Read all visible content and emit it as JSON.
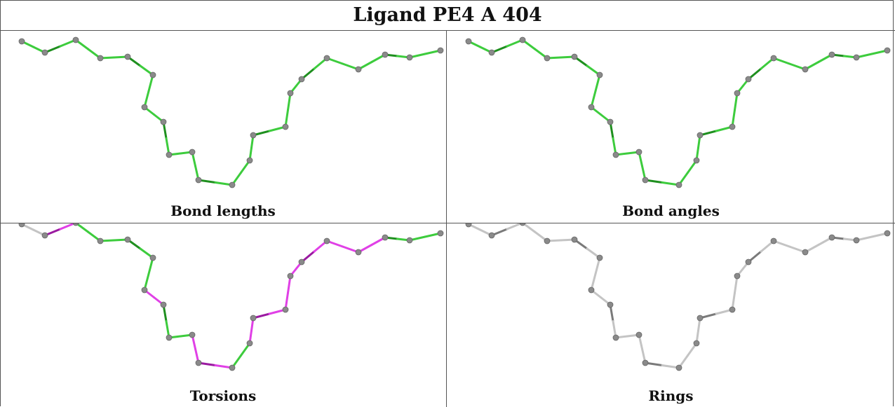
{
  "title": "Ligand PE4 A 404",
  "colors": {
    "atom": "#8a8a8a",
    "bond_ok": "#3dcc3d",
    "bond_ok_dark": "#1f8f1f",
    "bond_outlier": "#e040e6",
    "bond_outlier_dark": "#9a1aa0",
    "bond_none": "#c4c4c4",
    "bond_none_dark": "#7a7a7a"
  },
  "panels": [
    {
      "caption": "Bond lengths",
      "bond_states": [
        "ok",
        "ok",
        "ok",
        "ok",
        "ok",
        "ok",
        "ok",
        "ok",
        "ok",
        "ok",
        "ok",
        "ok",
        "ok",
        "ok",
        "ok",
        "ok",
        "ok",
        "ok",
        "ok",
        "ok",
        "ok",
        "ok",
        "ok",
        "ok"
      ]
    },
    {
      "caption": "Bond angles",
      "bond_states": [
        "ok",
        "ok",
        "ok",
        "ok",
        "ok",
        "ok",
        "ok",
        "ok",
        "ok",
        "ok",
        "ok",
        "ok",
        "ok",
        "ok",
        "ok",
        "ok",
        "ok",
        "ok",
        "ok",
        "ok",
        "ok",
        "ok",
        "ok",
        "ok"
      ]
    },
    {
      "caption": "Torsions",
      "bond_states": [
        "none",
        "outlier",
        "ok",
        "ok",
        "ok",
        "ok",
        "outlier",
        "ok",
        "ok",
        "outlier",
        "outlier",
        "ok",
        "outlier",
        "outlier",
        "outlier",
        "outlier",
        "outlier",
        "outlier",
        "outlier",
        "ok",
        "ok",
        "ok",
        "none",
        "none"
      ]
    },
    {
      "caption": "Rings",
      "bond_states": [
        "none",
        "none",
        "none",
        "none",
        "none",
        "none",
        "none",
        "none",
        "none",
        "none",
        "none",
        "none",
        "none",
        "none",
        "none",
        "none",
        "none",
        "none",
        "none",
        "none",
        "none",
        "none",
        "none",
        "none"
      ]
    }
  ]
}
